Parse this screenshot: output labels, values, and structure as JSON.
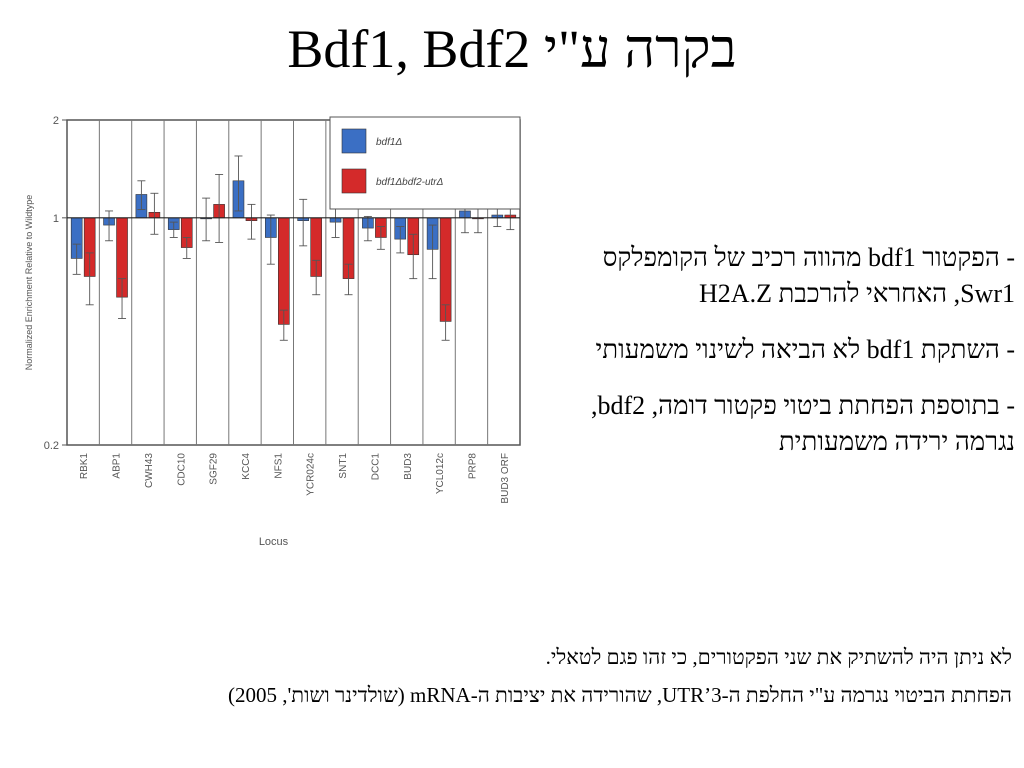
{
  "slide": {
    "title": "בקרה ע\"י Bdf1, Bdf2",
    "bullets": [
      "- הפקטור bdf1 מהווה רכיב של הקומפלקס Swr1, האחראי להרכבת H2A.Z",
      "- השתקת bdf1 לא הביאה לשינוי משמעותי",
      "- בתוספת הפחתת ביטוי פקטור דומה, bdf2, נגרמה ירידה משמעותית"
    ],
    "notes": [
      "לא ניתן היה להשתיק את שני הפקטורים, כי זהו פגם לטאלי.",
      "הפחתת הביטוי נגרמה ע\"י החלפת ה-3’UTR, שהורידה את יציבות ה-mRNA (שולדינר ושות', 2005)"
    ]
  },
  "chart_data": {
    "type": "bar",
    "xlabel": "Locus",
    "ylabel": "Normalized Enrichment Relative to Wildtype",
    "ylim": [
      0.2,
      2
    ],
    "yscale": "log",
    "yticks": [
      "2",
      "1",
      "0.2"
    ],
    "categories": [
      "RBK1",
      "ABP1",
      "CWH43",
      "CDC10",
      "SGF29",
      "KCC4",
      "NFS1",
      "YCR024c",
      "SNT1",
      "DCC1",
      "BUD3",
      "YCL012c",
      "PRP8",
      "BUD3 ORF"
    ],
    "series": [
      {
        "name": "bdf1Δ",
        "color": "#3b6fc4",
        "values": [
          0.75,
          0.95,
          1.18,
          0.92,
          1.0,
          1.3,
          0.87,
          0.98,
          0.97,
          0.93,
          0.86,
          0.8,
          1.05,
          1.02
        ],
        "errors": [
          0.08,
          0.1,
          0.12,
          0.05,
          0.15,
          0.25,
          0.15,
          0.16,
          0.1,
          0.08,
          0.08,
          0.15,
          0.15,
          0.08
        ]
      },
      {
        "name": "bdf1Δbdf2-utrΔ",
        "color": "#d42a2a",
        "values": [
          0.66,
          0.57,
          1.04,
          0.81,
          1.1,
          0.98,
          0.47,
          0.66,
          0.65,
          0.87,
          0.77,
          0.48,
          1.0,
          1.02
        ],
        "errors": [
          0.12,
          0.08,
          0.15,
          0.06,
          0.26,
          0.12,
          0.05,
          0.08,
          0.07,
          0.07,
          0.12,
          0.06,
          0.1,
          0.1
        ]
      }
    ],
    "legend_position": "top-right"
  }
}
